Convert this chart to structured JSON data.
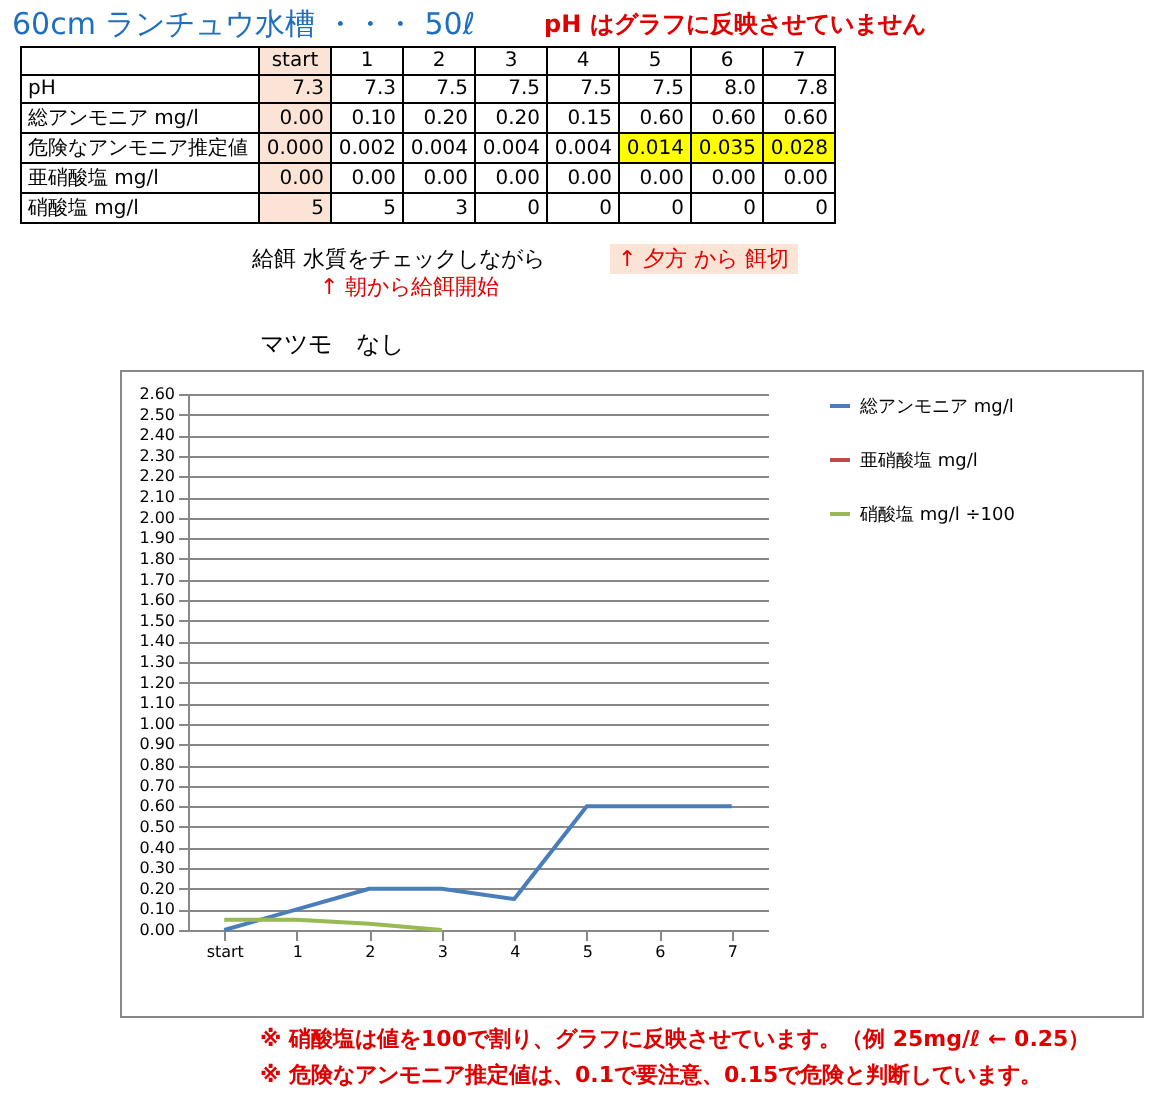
{
  "chart_data": {
    "type": "line",
    "title": "60cm ランチュウ水槽 ・・・ 50ℓ",
    "subtitle": "マツモ　なし",
    "categories": [
      "start",
      "1",
      "2",
      "3",
      "4",
      "5",
      "6",
      "7"
    ],
    "series": [
      {
        "name": "総アンモニア mg/l",
        "color": "#4a7ebb",
        "values": [
          0.0,
          0.1,
          0.2,
          0.2,
          0.15,
          0.6,
          0.6,
          0.6
        ]
      },
      {
        "name": "亜硝酸塩 mg/l",
        "color": "#be4b48",
        "values": [
          null,
          null,
          null,
          null,
          null,
          null,
          null,
          null
        ]
      },
      {
        "name": "硝酸塩 mg/l ÷100",
        "color": "#98b954",
        "values": [
          0.05,
          0.05,
          0.03,
          0.0,
          null,
          null,
          null,
          null
        ]
      }
    ],
    "ylim": [
      0,
      2.6
    ],
    "yticks": [
      {
        "value": 0,
        "label": "0.00"
      },
      {
        "value": 0.1,
        "label": "0.10"
      },
      {
        "value": 0.2,
        "label": "0.20"
      },
      {
        "value": 0.3,
        "label": "0.30"
      },
      {
        "value": 0.4,
        "label": "0.40"
      },
      {
        "value": 0.5,
        "label": "0.50"
      },
      {
        "value": 0.6,
        "label": "0.60"
      },
      {
        "value": 0.7,
        "label": "0.70"
      },
      {
        "value": 0.8,
        "label": "0.80"
      },
      {
        "value": 0.9,
        "label": "0.90"
      },
      {
        "value": 1.0,
        "label": "1.00"
      },
      {
        "value": 1.1,
        "label": "1.10"
      },
      {
        "value": 1.2,
        "label": "1.20"
      },
      {
        "value": 1.3,
        "label": "1.30"
      },
      {
        "value": 1.4,
        "label": "1.40"
      },
      {
        "value": 1.5,
        "label": "1.50"
      },
      {
        "value": 1.6,
        "label": "1.60"
      },
      {
        "value": 1.7,
        "label": "1.70"
      },
      {
        "value": 1.8,
        "label": "1.80"
      },
      {
        "value": 1.9,
        "label": "1.90"
      },
      {
        "value": 2.0,
        "label": "2.00"
      },
      {
        "value": 2.1,
        "label": "2.10"
      },
      {
        "value": 2.2,
        "label": "2.20"
      },
      {
        "value": 2.3,
        "label": "2.30"
      },
      {
        "value": 2.4,
        "label": "2.40"
      },
      {
        "value": 2.5,
        "label": "2.50"
      },
      {
        "value": 2.6,
        "label": "2.60"
      }
    ],
    "grid": "y",
    "legend": "right",
    "marker": "none",
    "line_style": "solid",
    "annotations": [
      "pH はグラフに反映させていません",
      "\tstart\t1\t2\t3\t4\t5\t6\t7",
      "pH\t7.3\t7.3\t7.5\t7.5\t7.5\t7.5\t8.0\t7.8",
      "総アンモニア mg/l\t0.00\t0.10\t0.20\t0.20\t0.15\t0.60\t0.60\t0.60",
      "危険なアンモニア推定値\t0.000\t0.002\t0.004\t0.004\t0.004\t0.014\t0.035\t0.028",
      "亜硝酸塩 mg/l\t0.00\t0.00\t0.00\t0.00\t0.00\t0.00\t0.00\t0.00",
      "硝酸塩 mg/l\t5\t5\t3\t0\t0\t0\t0\t0",
      "給餌 水質をチェックしながら",
      "↑ 朝から給餌開始",
      "↑ 夕方 から 餌切",
      "※ 硝酸塩は値を100で割り、グラフに反映させています。（例 25mg/ℓ ← 0.25）",
      "※ 危険なアンモニア推定値は、0.1で要注意、0.15で危険と判断しています。"
    ]
  }
}
